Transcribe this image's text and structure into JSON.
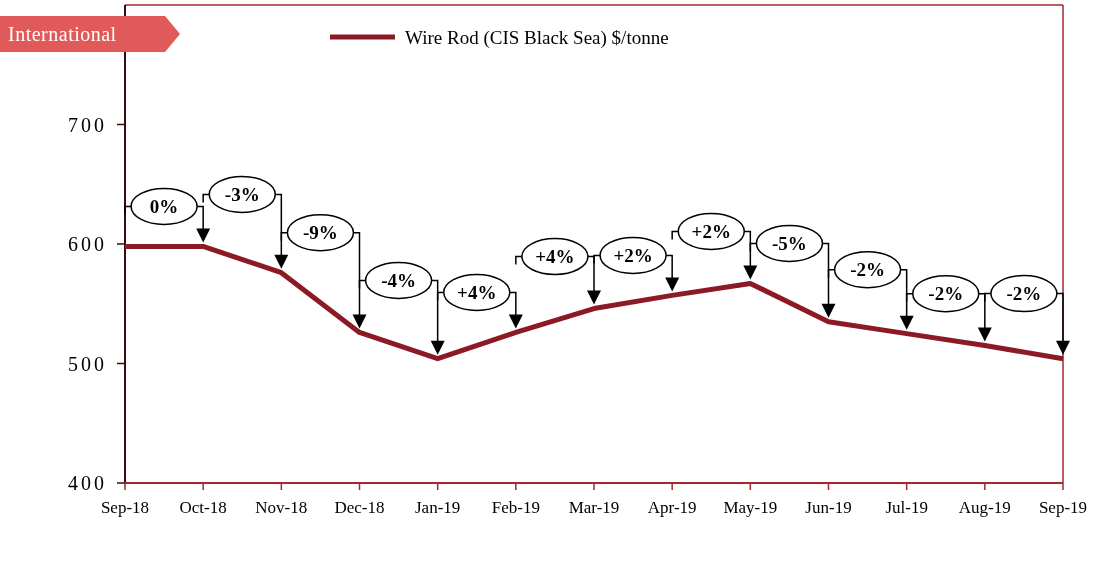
{
  "chart_data": {
    "type": "line",
    "title": "International",
    "categories": [
      "Sep-18",
      "Oct-18",
      "Nov-18",
      "Dec-18",
      "Jan-19",
      "Feb-19",
      "Mar-19",
      "Apr-19",
      "May-19",
      "Jun-19",
      "Jul-19",
      "Aug-19",
      "Sep-19"
    ],
    "series": [
      {
        "name": "Wire Rod (CIS Black Sea) $/tonne",
        "color": "#8b1a24",
        "values": [
          598,
          598,
          576,
          526,
          504,
          526,
          546,
          557,
          567,
          535,
          525,
          515,
          504
        ]
      }
    ],
    "ylim": [
      400,
      800
    ],
    "yticks": [
      400,
      500,
      600,
      700
    ],
    "grid": false,
    "legend": "top",
    "marker": "none",
    "line_style": "solid",
    "annotations": [
      "0%",
      "-3%",
      "-9%",
      "-4%",
      "+4%",
      "+4%",
      "+2%",
      "+2%",
      "-5%",
      "-2%",
      "-2%",
      "-2%"
    ]
  }
}
